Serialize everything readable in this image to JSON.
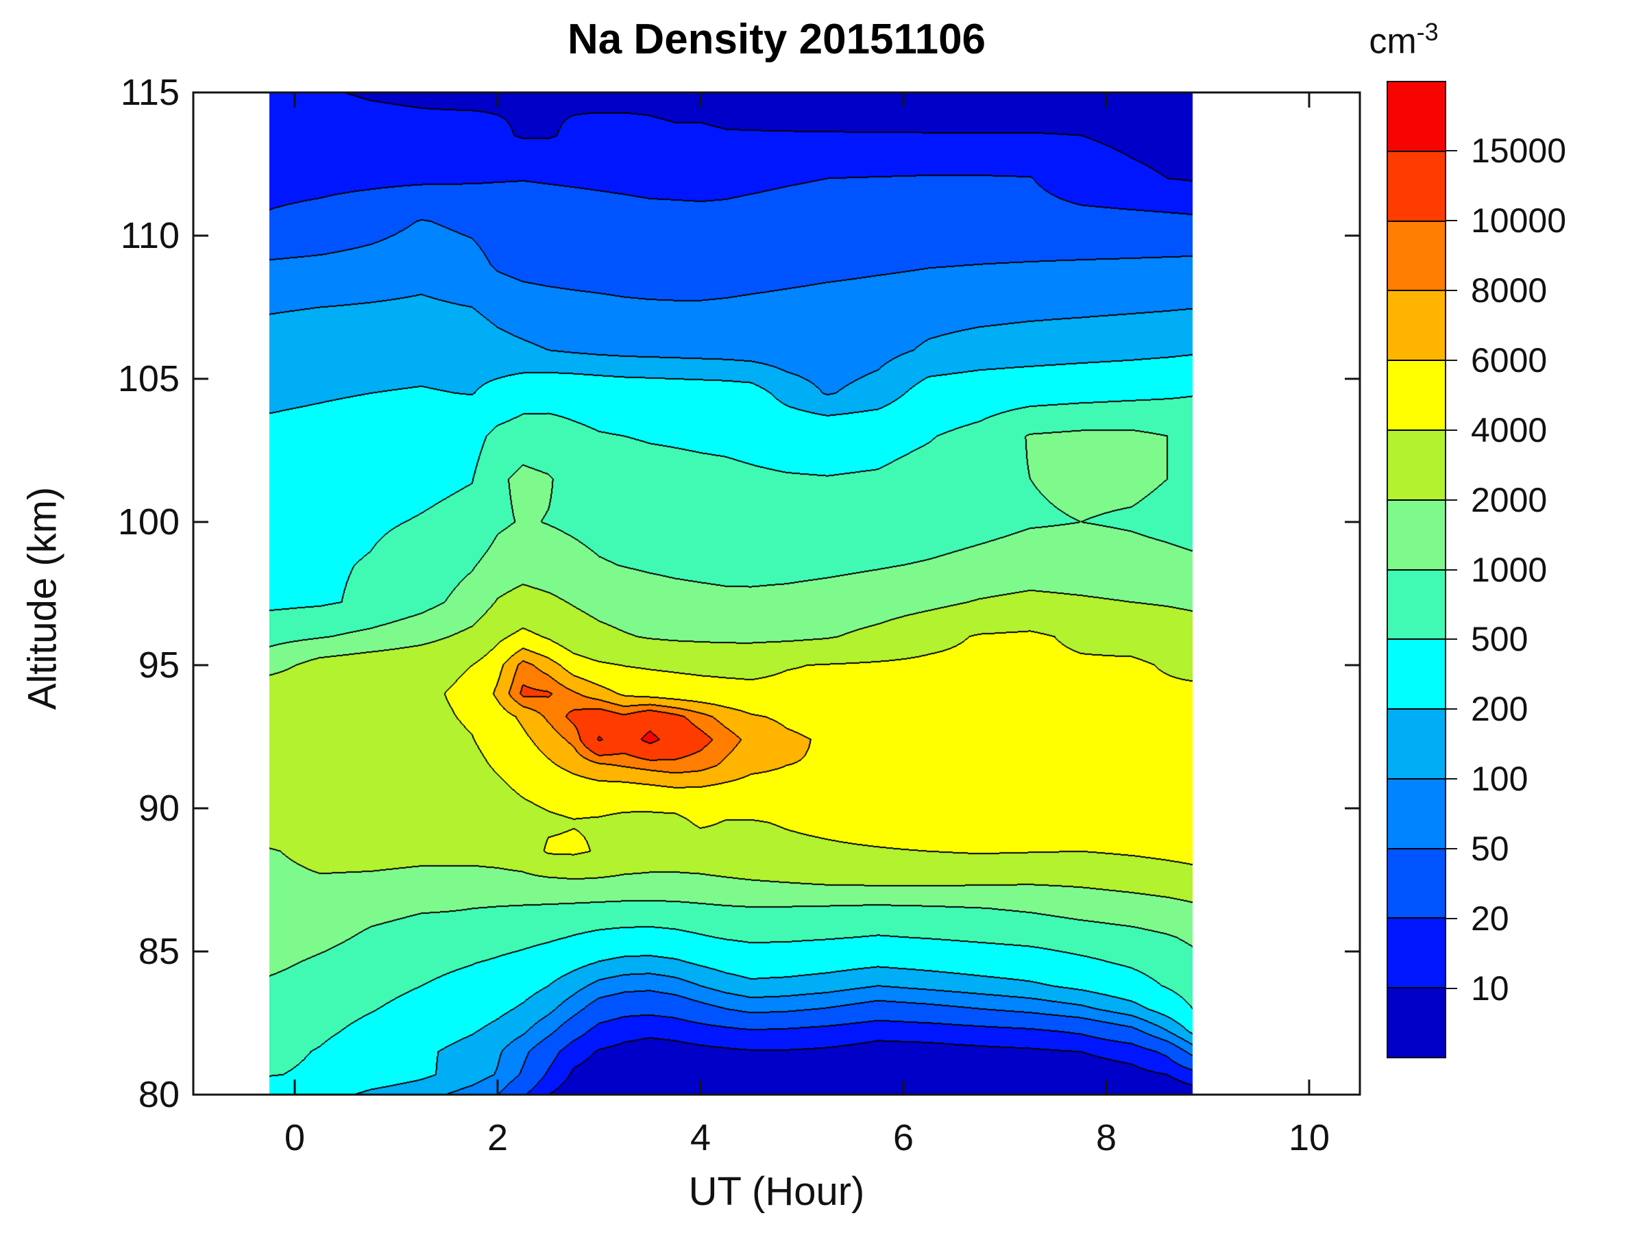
{
  "figure": {
    "title": "Na Density 20151106",
    "xlabel": "UT (Hour)",
    "ylabel": "Altitude (km)",
    "colorbar_unit_base": "cm",
    "colorbar_unit_exp": "-3",
    "background": "#ffffff",
    "axis_color": "#141414",
    "x_tick_labels": [
      "0",
      "2",
      "4",
      "6",
      "8",
      "10"
    ],
    "x_tick_values": [
      0,
      2,
      4,
      6,
      8,
      10
    ],
    "y_tick_labels": [
      "80",
      "85",
      "90",
      "95",
      "100",
      "105",
      "110",
      "115"
    ],
    "y_tick_values": [
      80,
      85,
      90,
      95,
      100,
      105,
      110,
      115
    ]
  },
  "chart_data": {
    "type": "heatmap",
    "subtype": "filled-contour",
    "title": "Na Density 20151106",
    "xlabel": "UT (Hour)",
    "ylabel": "Altitude (km)",
    "unit": "cm^-3",
    "x_range": [
      -1,
      10.5
    ],
    "y_range": [
      80,
      115
    ],
    "grid_on": false,
    "legend_position": "right-colorbar",
    "levels": [
      10,
      20,
      50,
      100,
      200,
      500,
      1000,
      2000,
      4000,
      6000,
      8000,
      10000,
      15000
    ],
    "level_labels": [
      "10",
      "20",
      "50",
      "100",
      "200",
      "500",
      "1000",
      "2000",
      "4000",
      "6000",
      "8000",
      "10000",
      "15000"
    ],
    "palette": [
      "#0000C8",
      "#0016FF",
      "#0054FF",
      "#0084FF",
      "#00AEF5",
      "#00FFFF",
      "#40FAB4",
      "#7EFA8C",
      "#B2F22F",
      "#FFFF00",
      "#FFB400",
      "#FF7D00",
      "#FF3C00",
      "#F70400"
    ],
    "contour_line_color": "#000000",
    "grid_ut": [
      -0.25,
      0.25,
      0.75,
      1.25,
      1.75,
      2.0,
      2.25,
      2.5,
      2.75,
      3.0,
      3.25,
      3.5,
      3.75,
      4.0,
      4.25,
      4.5,
      4.85,
      5.25,
      5.75,
      6.25,
      6.75,
      7.25,
      7.75,
      8.25,
      8.6,
      8.85
    ],
    "grid_alt": [
      80,
      80.7,
      81.5,
      82.2,
      83,
      83.8,
      84.6,
      85.5,
      86.5,
      87.5,
      88.5,
      89.5,
      90.5,
      91.5,
      92.4,
      93.2,
      94,
      95,
      96,
      97.2,
      98.5,
      100,
      101.5,
      103,
      104.5,
      106,
      107.5,
      109,
      110.5,
      112,
      113.5,
      115
    ],
    "values": [
      [
        300,
        280,
        170,
        130,
        75,
        50,
        22,
        10,
        6.5,
        6,
        5.5,
        5.5,
        5,
        5,
        5,
        5,
        5,
        5,
        5,
        5,
        5,
        5,
        5,
        5.5,
        6,
        7
      ],
      [
        520,
        450,
        320,
        230,
        140,
        95,
        45,
        18,
        9,
        7.5,
        7,
        6.5,
        6.5,
        6.5,
        6.5,
        6.5,
        6.5,
        6.5,
        6,
        6,
        6,
        6.5,
        7,
        8,
        10,
        15
      ],
      [
        600,
        480,
        330,
        230,
        150,
        110,
        60,
        28,
        13,
        9.5,
        8.5,
        8,
        8,
        8.5,
        9,
        9.5,
        9.5,
        9,
        8,
        8,
        8.5,
        9,
        10,
        13,
        24,
        65
      ],
      [
        650,
        560,
        420,
        300,
        210,
        160,
        110,
        60,
        28,
        15,
        12,
        11,
        12,
        14,
        16,
        18,
        17,
        15,
        12,
        13,
        15,
        17,
        22,
        38,
        95,
        230
      ],
      [
        750,
        640,
        520,
        400,
        300,
        240,
        180,
        120,
        65,
        33,
        26,
        25,
        28,
        38,
        50,
        62,
        58,
        48,
        34,
        40,
        50,
        62,
        85,
        150,
        290,
        500
      ],
      [
        900,
        760,
        620,
        500,
        400,
        330,
        270,
        200,
        130,
        80,
        64,
        60,
        72,
        100,
        135,
        165,
        155,
        135,
        100,
        120,
        145,
        175,
        240,
        360,
        530,
        720
      ],
      [
        1150,
        900,
        720,
        600,
        510,
        450,
        390,
        320,
        250,
        190,
        160,
        155,
        175,
        220,
        270,
        310,
        300,
        270,
        230,
        260,
        300,
        340,
        430,
        550,
        700,
        850
      ],
      [
        1500,
        1200,
        900,
        780,
        850,
        700,
        630,
        560,
        480,
        420,
        390,
        380,
        410,
        470,
        530,
        570,
        560,
        530,
        480,
        520,
        570,
        620,
        720,
        820,
        950,
        1100
      ],
      [
        1900,
        1500,
        1200,
        1050,
        1000,
        960,
        930,
        900,
        860,
        830,
        810,
        810,
        830,
        880,
        930,
        960,
        950,
        920,
        880,
        920,
        980,
        1080,
        1250,
        1400,
        1550,
        1750
      ],
      [
        1700,
        1900,
        1850,
        1750,
        1700,
        1700,
        1750,
        1850,
        1950,
        1900,
        1800,
        1750,
        1750,
        1800,
        1900,
        2000,
        2150,
        2350,
        2450,
        2450,
        2350,
        2250,
        2350,
        2650,
        2950,
        3250
      ],
      [
        1900,
        2400,
        2400,
        2300,
        2350,
        2500,
        2800,
        4300,
        4400,
        3800,
        3100,
        2900,
        2850,
        2950,
        3200,
        3500,
        3700,
        3800,
        3900,
        4000,
        4200,
        4100,
        4000,
        4300,
        4600,
        4800
      ],
      [
        3100,
        2900,
        2700,
        2650,
        2800,
        3100,
        3400,
        3700,
        3900,
        3800,
        3600,
        3500,
        3500,
        4300,
        3900,
        3900,
        4100,
        4300,
        4600,
        4900,
        5100,
        4900,
        4800,
        5000,
        5200,
        5400
      ],
      [
        3300,
        3100,
        2950,
        2950,
        3200,
        3600,
        4100,
        4500,
        4800,
        4900,
        4800,
        5000,
        5300,
        5300,
        5100,
        5000,
        5200,
        5400,
        5500,
        5500,
        5400,
        5300,
        5200,
        5400,
        5500,
        5600
      ],
      [
        3450,
        3250,
        3100,
        3200,
        3600,
        4200,
        4900,
        5700,
        6600,
        7600,
        8200,
        8800,
        9300,
        8800,
        7600,
        6500,
        6000,
        5900,
        5800,
        5800,
        5700,
        5500,
        5400,
        5600,
        5700,
        5800
      ],
      [
        3550,
        3350,
        3250,
        3450,
        3950,
        4700,
        5600,
        6900,
        8600,
        15500,
        12500,
        16500,
        12800,
        11000,
        9000,
        7400,
        6300,
        5800,
        5600,
        5500,
        5400,
        5300,
        5200,
        5400,
        5500,
        5600
      ],
      [
        3550,
        3400,
        3350,
        3600,
        4200,
        5100,
        6400,
        8400,
        10800,
        12200,
        10500,
        12800,
        10800,
        8800,
        7200,
        6200,
        5700,
        5400,
        5200,
        5200,
        5100,
        5000,
        4900,
        5100,
        5200,
        5300
      ],
      [
        3400,
        3300,
        3350,
        3700,
        4400,
        6400,
        10600,
        10300,
        8300,
        6900,
        5700,
        5300,
        5000,
        4800,
        4650,
        4550,
        4500,
        4400,
        4350,
        4400,
        4350,
        4250,
        4150,
        4350,
        4450,
        4550
      ],
      [
        1500,
        2600,
        3100,
        3400,
        4000,
        5400,
        8800,
        7000,
        5000,
        4300,
        3950,
        3800,
        3700,
        3600,
        3550,
        3500,
        3900,
        4100,
        4300,
        4500,
        4600,
        4500,
        4300,
        4400,
        3800,
        3400
      ],
      [
        800,
        950,
        1200,
        1600,
        2400,
        3600,
        4600,
        3800,
        2900,
        2400,
        2100,
        1900,
        1800,
        1750,
        1700,
        1700,
        1750,
        1900,
        2400,
        3300,
        4200,
        4400,
        3600,
        3200,
        2900,
        2700
      ],
      [
        430,
        460,
        560,
        800,
        1300,
        2100,
        2600,
        2300,
        1900,
        1600,
        1450,
        1350,
        1250,
        1200,
        1150,
        1150,
        1200,
        1300,
        1450,
        1700,
        2100,
        2400,
        2200,
        2000,
        1900,
        1800
      ],
      [
        420,
        460,
        520,
        680,
        950,
        1300,
        1500,
        1350,
        1200,
        1050,
        980,
        920,
        880,
        850,
        830,
        820,
        830,
        870,
        950,
        1050,
        1200,
        1350,
        1300,
        1200,
        1150,
        1100
      ],
      [
        380,
        420,
        460,
        520,
        600,
        900,
        1050,
        980,
        900,
        820,
        780,
        750,
        720,
        700,
        690,
        670,
        650,
        640,
        660,
        720,
        820,
        950,
        1000,
        950,
        880,
        820
      ],
      [
        300,
        330,
        380,
        430,
        490,
        900,
        1150,
        1050,
        800,
        680,
        640,
        610,
        590,
        570,
        560,
        540,
        520,
        510,
        530,
        620,
        800,
        1000,
        1100,
        1100,
        1000,
        900
      ],
      [
        240,
        260,
        290,
        330,
        380,
        620,
        750,
        680,
        580,
        520,
        500,
        480,
        470,
        460,
        450,
        430,
        400,
        390,
        410,
        480,
        620,
        1050,
        1150,
        1150,
        1000,
        850
      ],
      [
        170,
        185,
        200,
        210,
        195,
        260,
        340,
        380,
        380,
        360,
        340,
        330,
        320,
        310,
        300,
        280,
        150,
        95,
        130,
        290,
        330,
        360,
        390,
        420,
        450,
        480
      ],
      [
        130,
        140,
        150,
        155,
        140,
        120,
        110,
        100,
        92,
        86,
        82,
        80,
        78,
        76,
        74,
        70,
        66,
        68,
        80,
        110,
        130,
        140,
        150,
        160,
        170,
        180
      ],
      [
        95,
        100,
        105,
        110,
        100,
        85,
        75,
        70,
        66,
        62,
        58,
        56,
        55,
        55,
        57,
        60,
        64,
        68,
        72,
        76,
        80,
        85,
        88,
        92,
        95,
        98
      ],
      [
        55,
        60,
        68,
        80,
        65,
        45,
        38,
        35,
        33,
        32,
        31,
        30,
        30,
        30,
        31,
        33,
        36,
        40,
        44,
        48,
        50,
        52,
        54,
        56,
        58,
        60
      ],
      [
        22,
        26,
        35,
        52,
        42,
        34,
        30,
        28,
        27,
        26,
        25,
        24,
        23.5,
        23,
        23,
        24,
        25,
        26,
        27,
        28,
        28,
        27,
        26,
        25,
        24,
        23
      ],
      [
        15.5,
        16,
        16.5,
        17,
        18,
        19,
        19.5,
        19,
        18.5,
        18,
        17.5,
        17,
        17,
        17,
        17.5,
        18,
        19,
        20,
        20.5,
        21,
        21,
        20.5,
        13,
        11,
        10,
        9.5
      ],
      [
        13.5,
        13,
        12.5,
        12,
        12.5,
        11,
        9.5,
        9.5,
        11,
        12,
        12,
        11.5,
        11,
        11,
        10.5,
        10.5,
        10.5,
        10.5,
        10.5,
        10.5,
        10.5,
        10.5,
        10,
        9,
        8.5,
        8
      ],
      [
        12,
        10.5,
        9.5,
        9,
        8.5,
        9,
        9.5,
        9.5,
        9,
        8.5,
        8.5,
        8.5,
        8,
        8,
        7.5,
        7,
        6.5,
        6,
        5.5,
        5,
        5,
        5,
        5.5,
        5.5,
        5.5,
        6
      ]
    ]
  }
}
